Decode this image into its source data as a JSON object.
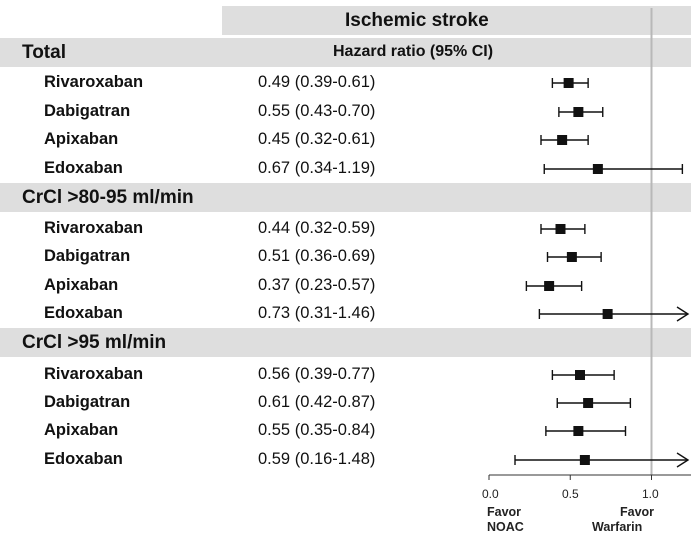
{
  "header": {
    "outcome": "Ischemic stroke",
    "column_label": "Hazard ratio (95% CI)"
  },
  "chart_data": {
    "type": "forest",
    "x_axis": {
      "min": 0.0,
      "max": 1.25,
      "ticks": [
        "0.0",
        "0.5",
        "1.0"
      ],
      "reference_line": 1.0
    },
    "favor_left": [
      "Favor",
      "NOAC"
    ],
    "favor_right": [
      "Favor",
      "Warfarin"
    ],
    "groups": [
      {
        "label": "Total",
        "rows": [
          {
            "drug": "Rivaroxaban",
            "hr_text": "0.49 (0.39-0.61)",
            "hr": 0.49,
            "lo": 0.39,
            "hi": 0.61,
            "hi_arrow": false
          },
          {
            "drug": "Dabigatran",
            "hr_text": "0.55 (0.43-0.70)",
            "hr": 0.55,
            "lo": 0.43,
            "hi": 0.7,
            "hi_arrow": false
          },
          {
            "drug": "Apixaban",
            "hr_text": "0.45 (0.32-0.61)",
            "hr": 0.45,
            "lo": 0.32,
            "hi": 0.61,
            "hi_arrow": false
          },
          {
            "drug": "Edoxaban",
            "hr_text": "0.67 (0.34-1.19)",
            "hr": 0.67,
            "lo": 0.34,
            "hi": 1.19,
            "hi_arrow": false
          }
        ]
      },
      {
        "label": "CrCl >80-95 ml/min",
        "rows": [
          {
            "drug": "Rivaroxaban",
            "hr_text": "0.44 (0.32-0.59)",
            "hr": 0.44,
            "lo": 0.32,
            "hi": 0.59,
            "hi_arrow": false
          },
          {
            "drug": "Dabigatran",
            "hr_text": "0.51 (0.36-0.69)",
            "hr": 0.51,
            "lo": 0.36,
            "hi": 0.69,
            "hi_arrow": false
          },
          {
            "drug": "Apixaban",
            "hr_text": "0.37 (0.23-0.57)",
            "hr": 0.37,
            "lo": 0.23,
            "hi": 0.57,
            "hi_arrow": false
          },
          {
            "drug": "Edoxaban",
            "hr_text": "0.73 (0.31-1.46)",
            "hr": 0.73,
            "lo": 0.31,
            "hi": 1.46,
            "hi_arrow": true
          }
        ]
      },
      {
        "label": "CrCl >95 ml/min",
        "rows": [
          {
            "drug": "Rivaroxaban",
            "hr_text": "0.56 (0.39-0.77)",
            "hr": 0.56,
            "lo": 0.39,
            "hi": 0.77,
            "hi_arrow": false
          },
          {
            "drug": "Dabigatran",
            "hr_text": "0.61 (0.42-0.87)",
            "hr": 0.61,
            "lo": 0.42,
            "hi": 0.87,
            "hi_arrow": false
          },
          {
            "drug": "Apixaban",
            "hr_text": "0.55 (0.35-0.84)",
            "hr": 0.55,
            "lo": 0.35,
            "hi": 0.84,
            "hi_arrow": false
          },
          {
            "drug": "Edoxaban",
            "hr_text": "0.59 (0.16-1.48)",
            "hr": 0.59,
            "lo": 0.16,
            "hi": 1.48,
            "hi_arrow": true
          }
        ]
      }
    ]
  }
}
